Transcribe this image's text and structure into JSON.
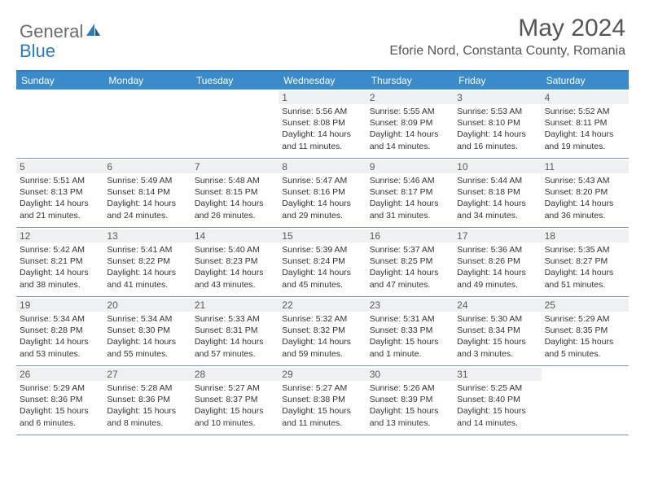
{
  "brand": {
    "general": "General",
    "blue": "Blue"
  },
  "title": "May 2024",
  "location": "Eforie Nord, Constanta County, Romania",
  "colors": {
    "header_bg": "#3a8bc9",
    "border_top": "#2b7bbf",
    "row_border": "#7a99af",
    "daynum_bg": "#eef0f1",
    "text": "#333333",
    "title_text": "#555555"
  },
  "day_names": [
    "Sunday",
    "Monday",
    "Tuesday",
    "Wednesday",
    "Thursday",
    "Friday",
    "Saturday"
  ],
  "weeks": [
    [
      {
        "blank": true
      },
      {
        "blank": true
      },
      {
        "blank": true
      },
      {
        "day": "1",
        "sunrise": "5:56 AM",
        "sunset": "8:08 PM",
        "daylight": "14 hours and 11 minutes."
      },
      {
        "day": "2",
        "sunrise": "5:55 AM",
        "sunset": "8:09 PM",
        "daylight": "14 hours and 14 minutes."
      },
      {
        "day": "3",
        "sunrise": "5:53 AM",
        "sunset": "8:10 PM",
        "daylight": "14 hours and 16 minutes."
      },
      {
        "day": "4",
        "sunrise": "5:52 AM",
        "sunset": "8:11 PM",
        "daylight": "14 hours and 19 minutes."
      }
    ],
    [
      {
        "day": "5",
        "sunrise": "5:51 AM",
        "sunset": "8:13 PM",
        "daylight": "14 hours and 21 minutes."
      },
      {
        "day": "6",
        "sunrise": "5:49 AM",
        "sunset": "8:14 PM",
        "daylight": "14 hours and 24 minutes."
      },
      {
        "day": "7",
        "sunrise": "5:48 AM",
        "sunset": "8:15 PM",
        "daylight": "14 hours and 26 minutes."
      },
      {
        "day": "8",
        "sunrise": "5:47 AM",
        "sunset": "8:16 PM",
        "daylight": "14 hours and 29 minutes."
      },
      {
        "day": "9",
        "sunrise": "5:46 AM",
        "sunset": "8:17 PM",
        "daylight": "14 hours and 31 minutes."
      },
      {
        "day": "10",
        "sunrise": "5:44 AM",
        "sunset": "8:18 PM",
        "daylight": "14 hours and 34 minutes."
      },
      {
        "day": "11",
        "sunrise": "5:43 AM",
        "sunset": "8:20 PM",
        "daylight": "14 hours and 36 minutes."
      }
    ],
    [
      {
        "day": "12",
        "sunrise": "5:42 AM",
        "sunset": "8:21 PM",
        "daylight": "14 hours and 38 minutes."
      },
      {
        "day": "13",
        "sunrise": "5:41 AM",
        "sunset": "8:22 PM",
        "daylight": "14 hours and 41 minutes."
      },
      {
        "day": "14",
        "sunrise": "5:40 AM",
        "sunset": "8:23 PM",
        "daylight": "14 hours and 43 minutes."
      },
      {
        "day": "15",
        "sunrise": "5:39 AM",
        "sunset": "8:24 PM",
        "daylight": "14 hours and 45 minutes."
      },
      {
        "day": "16",
        "sunrise": "5:37 AM",
        "sunset": "8:25 PM",
        "daylight": "14 hours and 47 minutes."
      },
      {
        "day": "17",
        "sunrise": "5:36 AM",
        "sunset": "8:26 PM",
        "daylight": "14 hours and 49 minutes."
      },
      {
        "day": "18",
        "sunrise": "5:35 AM",
        "sunset": "8:27 PM",
        "daylight": "14 hours and 51 minutes."
      }
    ],
    [
      {
        "day": "19",
        "sunrise": "5:34 AM",
        "sunset": "8:28 PM",
        "daylight": "14 hours and 53 minutes."
      },
      {
        "day": "20",
        "sunrise": "5:34 AM",
        "sunset": "8:30 PM",
        "daylight": "14 hours and 55 minutes."
      },
      {
        "day": "21",
        "sunrise": "5:33 AM",
        "sunset": "8:31 PM",
        "daylight": "14 hours and 57 minutes."
      },
      {
        "day": "22",
        "sunrise": "5:32 AM",
        "sunset": "8:32 PM",
        "daylight": "14 hours and 59 minutes."
      },
      {
        "day": "23",
        "sunrise": "5:31 AM",
        "sunset": "8:33 PM",
        "daylight": "15 hours and 1 minute."
      },
      {
        "day": "24",
        "sunrise": "5:30 AM",
        "sunset": "8:34 PM",
        "daylight": "15 hours and 3 minutes."
      },
      {
        "day": "25",
        "sunrise": "5:29 AM",
        "sunset": "8:35 PM",
        "daylight": "15 hours and 5 minutes."
      }
    ],
    [
      {
        "day": "26",
        "sunrise": "5:29 AM",
        "sunset": "8:36 PM",
        "daylight": "15 hours and 6 minutes."
      },
      {
        "day": "27",
        "sunrise": "5:28 AM",
        "sunset": "8:36 PM",
        "daylight": "15 hours and 8 minutes."
      },
      {
        "day": "28",
        "sunrise": "5:27 AM",
        "sunset": "8:37 PM",
        "daylight": "15 hours and 10 minutes."
      },
      {
        "day": "29",
        "sunrise": "5:27 AM",
        "sunset": "8:38 PM",
        "daylight": "15 hours and 11 minutes."
      },
      {
        "day": "30",
        "sunrise": "5:26 AM",
        "sunset": "8:39 PM",
        "daylight": "15 hours and 13 minutes."
      },
      {
        "day": "31",
        "sunrise": "5:25 AM",
        "sunset": "8:40 PM",
        "daylight": "15 hours and 14 minutes."
      },
      {
        "blank": true
      }
    ]
  ],
  "labels": {
    "sunrise": "Sunrise:",
    "sunset": "Sunset:",
    "daylight": "Daylight:"
  }
}
